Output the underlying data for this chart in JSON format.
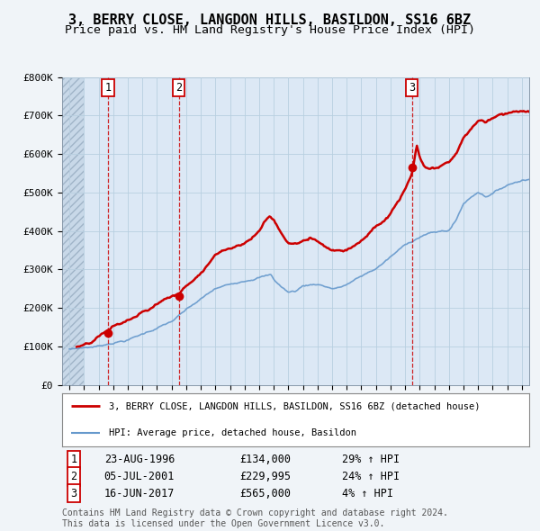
{
  "title": "3, BERRY CLOSE, LANGDON HILLS, BASILDON, SS16 6BZ",
  "subtitle": "Price paid vs. HM Land Registry's House Price Index (HPI)",
  "title_fontsize": 11,
  "subtitle_fontsize": 9.5,
  "xlim": [
    1993.5,
    2025.5
  ],
  "ylim": [
    0,
    800000
  ],
  "yticks": [
    0,
    100000,
    200000,
    300000,
    400000,
    500000,
    600000,
    700000,
    800000
  ],
  "ytick_labels": [
    "£0",
    "£100K",
    "£200K",
    "£300K",
    "£400K",
    "£500K",
    "£600K",
    "£700K",
    "£800K"
  ],
  "background_color": "#f0f4f8",
  "plot_bg_color": "#dce8f5",
  "hatch_end_year": 1995.0,
  "grid_color": "#b8cfe0",
  "sale_points": [
    {
      "year": 1996.645,
      "price": 134000,
      "label": "1"
    },
    {
      "year": 2001.507,
      "price": 229995,
      "label": "2"
    },
    {
      "year": 2017.457,
      "price": 565000,
      "label": "3"
    }
  ],
  "vline_color": "#cc0000",
  "sale_marker_color": "#cc0000",
  "sale_marker_size": 7,
  "legend_line1_label": "3, BERRY CLOSE, LANGDON HILLS, BASILDON, SS16 6BZ (detached house)",
  "legend_line1_color": "#cc0000",
  "legend_line1_lw": 1.8,
  "legend_line2_label": "HPI: Average price, detached house, Basildon",
  "legend_line2_color": "#6699cc",
  "legend_line2_lw": 1.2,
  "table_rows": [
    {
      "num": "1",
      "date": "23-AUG-1996",
      "price": "£134,000",
      "pct": "29% ↑ HPI"
    },
    {
      "num": "2",
      "date": "05-JUL-2001",
      "price": "£229,995",
      "pct": "24% ↑ HPI"
    },
    {
      "num": "3",
      "date": "16-JUN-2017",
      "price": "£565,000",
      "pct": "4% ↑ HPI"
    }
  ],
  "footer": "Contains HM Land Registry data © Crown copyright and database right 2024.\nThis data is licensed under the Open Government Licence v3.0.",
  "footer_fontsize": 7.0,
  "label_fontsize": 8.5,
  "tick_fontsize": 8.0
}
